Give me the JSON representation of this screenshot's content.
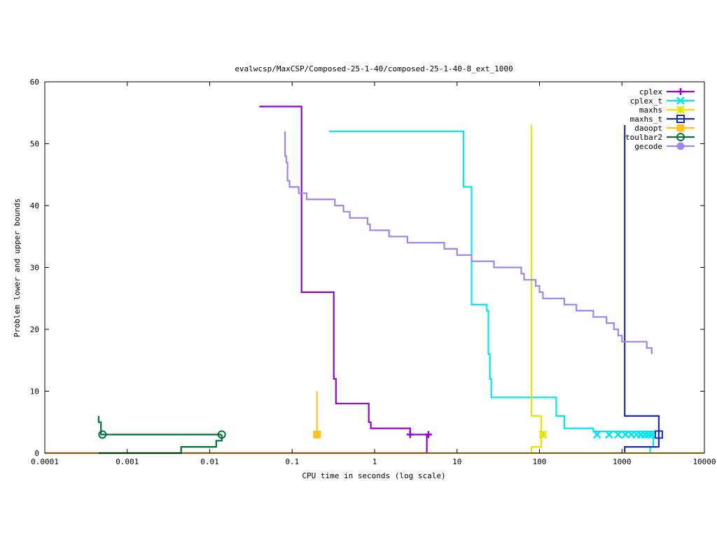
{
  "chart_data": {
    "type": "line",
    "title": "evalwcsp/MaxCSP/Composed-25-1-40/composed-25-1-40-8_ext_1000",
    "xlabel": "CPU time in seconds (log scale)",
    "ylabel": "Problem lower and upper bounds",
    "xscale": "log",
    "xlim": [
      0.0001,
      10000
    ],
    "ylim": [
      0,
      60
    ],
    "xticks": [
      0.0001,
      0.001,
      0.01,
      0.1,
      1,
      10,
      100,
      1000,
      10000
    ],
    "xtick_labels": [
      "0.0001",
      "0.001",
      "0.01",
      "0.1",
      "1",
      "10",
      "100",
      "1000",
      "10000"
    ],
    "yticks": [
      0,
      10,
      20,
      30,
      40,
      50,
      60
    ],
    "ytick_labels": [
      "0",
      "10",
      "20",
      "30",
      "40",
      "50",
      "60"
    ],
    "grid": false,
    "legend_position": "top-right",
    "series": [
      {
        "name": "cplex",
        "color": "#9400d3",
        "marker": "plus",
        "upper": [
          [
            0.04,
            56
          ],
          [
            0.13,
            56
          ],
          [
            0.13,
            26
          ],
          [
            0.32,
            26
          ],
          [
            0.32,
            12
          ],
          [
            0.34,
            12
          ],
          [
            0.34,
            8
          ],
          [
            0.85,
            8
          ],
          [
            0.85,
            5
          ],
          [
            0.9,
            5
          ],
          [
            0.9,
            4
          ],
          [
            2.7,
            4
          ],
          [
            2.7,
            3
          ],
          [
            4.5,
            3
          ]
        ],
        "lower": [
          [
            0.0001,
            0
          ],
          [
            4.3,
            0
          ],
          [
            4.3,
            3
          ]
        ],
        "markers": [
          [
            2.7,
            3
          ],
          [
            4.5,
            3
          ]
        ]
      },
      {
        "name": "cplex_t",
        "color": "#00e5ee",
        "marker": "x",
        "upper": [
          [
            0.28,
            52
          ],
          [
            12,
            52
          ],
          [
            12,
            43
          ],
          [
            15,
            43
          ],
          [
            15,
            24
          ],
          [
            23,
            24
          ],
          [
            23,
            23
          ],
          [
            24,
            23
          ],
          [
            24,
            16
          ],
          [
            25,
            16
          ],
          [
            25,
            12
          ],
          [
            26,
            12
          ],
          [
            26,
            9
          ],
          [
            160,
            9
          ],
          [
            160,
            6
          ],
          [
            200,
            6
          ],
          [
            200,
            4
          ],
          [
            450,
            4
          ],
          [
            450,
            3.5
          ],
          [
            2500,
            3.5
          ],
          [
            2500,
            3
          ]
        ],
        "lower": [
          [
            700,
            0
          ],
          [
            2200,
            0
          ],
          [
            2200,
            1
          ],
          [
            2400,
            1
          ],
          [
            2400,
            3
          ]
        ],
        "markers": [
          [
            500,
            3
          ],
          [
            700,
            3
          ],
          [
            900,
            3
          ],
          [
            1100,
            3
          ],
          [
            1300,
            3
          ],
          [
            1500,
            3
          ],
          [
            1700,
            3
          ],
          [
            1900,
            3
          ],
          [
            2100,
            3
          ],
          [
            2300,
            3
          ]
        ]
      },
      {
        "name": "maxhs",
        "color": "#e5e500",
        "marker": "star",
        "upper": [
          [
            80,
            53
          ],
          [
            80,
            6
          ],
          [
            105,
            6
          ],
          [
            105,
            3
          ]
        ],
        "lower": [
          [
            80,
            0
          ],
          [
            80,
            1
          ],
          [
            105,
            1
          ],
          [
            105,
            3
          ]
        ],
        "markers": [
          [
            110,
            3
          ]
        ]
      },
      {
        "name": "maxhs_t",
        "color": "#1c2bb4",
        "marker": "square",
        "upper": [
          [
            1080,
            53
          ],
          [
            1080,
            6
          ],
          [
            2800,
            6
          ],
          [
            2800,
            3
          ]
        ],
        "lower": [
          [
            1080,
            0
          ],
          [
            1080,
            1
          ],
          [
            2800,
            1
          ],
          [
            2800,
            3
          ]
        ],
        "markers": [
          [
            2800,
            3
          ]
        ]
      },
      {
        "name": "daoopt",
        "color": "#ffc020",
        "marker": "filled-square",
        "upper": [
          [
            0.2,
            10
          ],
          [
            0.2,
            3
          ]
        ],
        "lower": [
          [
            0.0001,
            0
          ],
          [
            10000,
            0
          ]
        ],
        "markers": [
          [
            0.2,
            3
          ]
        ]
      },
      {
        "name": "toulbar2",
        "color": "#00703c",
        "marker": "open-circle",
        "upper": [
          [
            0.00045,
            6
          ],
          [
            0.00045,
            5
          ],
          [
            0.00048,
            5
          ],
          [
            0.00048,
            3
          ],
          [
            0.014,
            3
          ]
        ],
        "lower": [
          [
            0.00045,
            0
          ],
          [
            0.0045,
            0
          ],
          [
            0.0045,
            1
          ],
          [
            0.012,
            1
          ],
          [
            0.012,
            2
          ],
          [
            0.014,
            2
          ],
          [
            0.014,
            3
          ]
        ],
        "markers": [
          [
            0.0005,
            3
          ],
          [
            0.014,
            3
          ]
        ]
      },
      {
        "name": "gecode",
        "color": "#9f86e8",
        "marker": "filled-circle",
        "upper": [
          [
            0.082,
            52
          ],
          [
            0.082,
            48
          ],
          [
            0.085,
            48
          ],
          [
            0.085,
            47
          ],
          [
            0.088,
            47
          ],
          [
            0.088,
            44
          ],
          [
            0.093,
            44
          ],
          [
            0.093,
            43
          ],
          [
            0.12,
            43
          ],
          [
            0.12,
            42
          ],
          [
            0.15,
            42
          ],
          [
            0.15,
            41
          ],
          [
            0.33,
            41
          ],
          [
            0.33,
            40
          ],
          [
            0.42,
            40
          ],
          [
            0.42,
            39
          ],
          [
            0.5,
            39
          ],
          [
            0.5,
            38
          ],
          [
            0.82,
            38
          ],
          [
            0.82,
            37
          ],
          [
            0.88,
            37
          ],
          [
            0.88,
            36
          ],
          [
            1.5,
            36
          ],
          [
            1.5,
            35
          ],
          [
            2.5,
            35
          ],
          [
            2.5,
            34
          ],
          [
            7,
            34
          ],
          [
            7,
            33
          ],
          [
            10,
            33
          ],
          [
            10,
            32
          ],
          [
            15,
            32
          ],
          [
            15,
            31
          ],
          [
            28,
            31
          ],
          [
            28,
            30
          ],
          [
            60,
            30
          ],
          [
            60,
            29
          ],
          [
            65,
            29
          ],
          [
            65,
            28
          ],
          [
            90,
            28
          ],
          [
            90,
            27
          ],
          [
            100,
            27
          ],
          [
            100,
            26
          ],
          [
            110,
            26
          ],
          [
            110,
            25
          ],
          [
            200,
            25
          ],
          [
            200,
            24
          ],
          [
            280,
            24
          ],
          [
            280,
            23
          ],
          [
            450,
            23
          ],
          [
            450,
            22
          ],
          [
            650,
            22
          ],
          [
            650,
            21
          ],
          [
            800,
            21
          ],
          [
            800,
            20
          ],
          [
            900,
            20
          ],
          [
            900,
            19
          ],
          [
            1000,
            19
          ],
          [
            1000,
            18
          ],
          [
            2000,
            18
          ],
          [
            2000,
            17
          ],
          [
            2300,
            17
          ],
          [
            2300,
            16
          ]
        ],
        "lower": [],
        "markers": []
      }
    ]
  }
}
